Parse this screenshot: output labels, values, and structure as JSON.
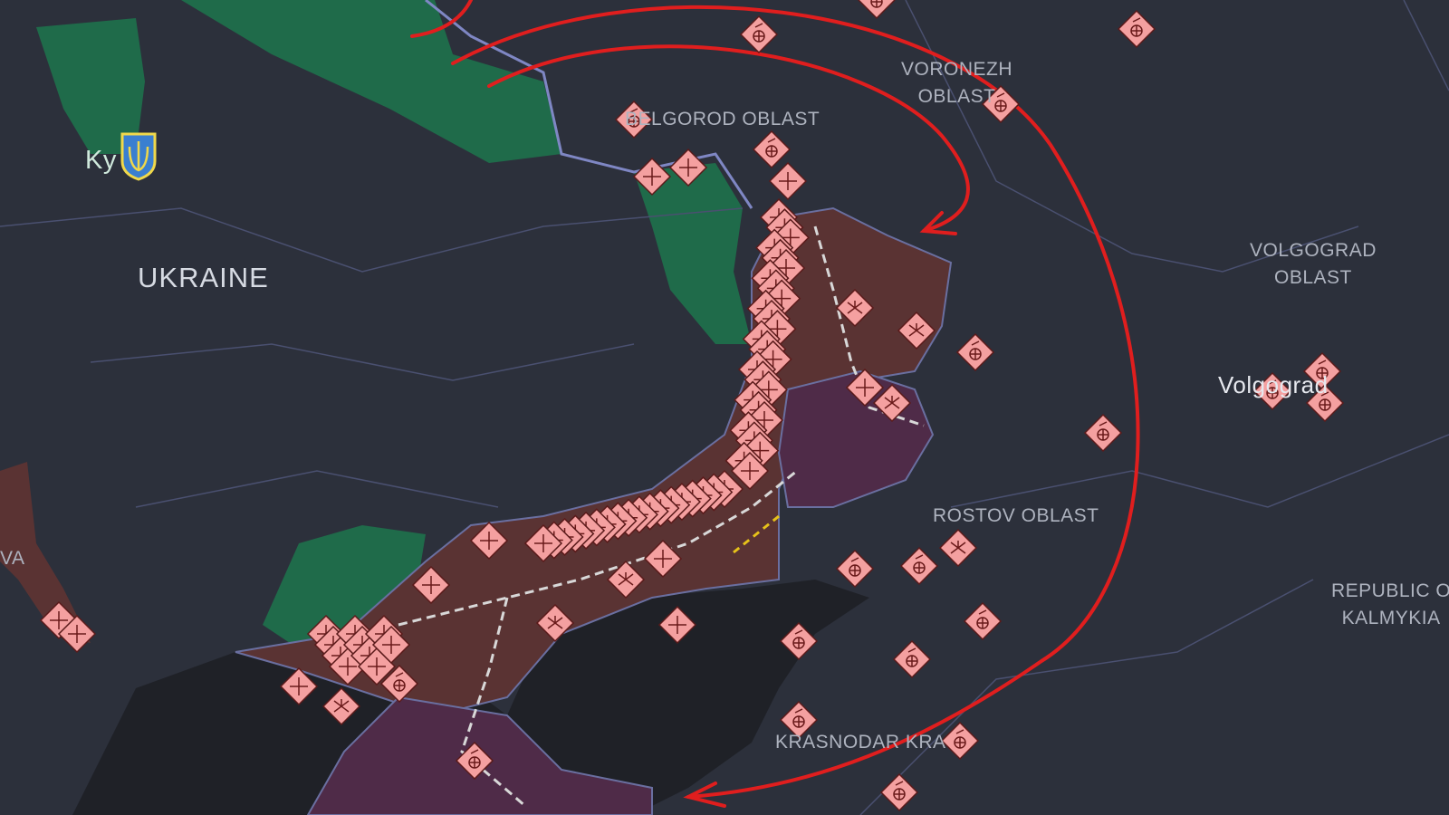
{
  "labels": {
    "country": "UKRAINE",
    "kyiv": "Ky",
    "belgorod": "BELGOROD OBLAST",
    "voronezh_1": "VORONEZH",
    "voronezh_2": "OBLAST",
    "volgograd_oblast_1": "VOLGOGRAD",
    "volgograd_oblast_2": "OBLAST",
    "volgograd_city": "Volgograd",
    "rostov": "ROSTOV OBLAST",
    "kalmykia_1": "REPUBLIC O",
    "kalmykia_2": "KALMYKIA",
    "krasnodar": "KRASNODAR KRA",
    "left_edge": "VA"
  },
  "colors": {
    "background": "#2c303b",
    "ukraine_controlled_green": "#1f6b4a",
    "occupied_brown": "#5a3333",
    "occupied_purple": "#4f2b48",
    "sea": "#1f2127",
    "marker_fill": "#f4a0a0",
    "arrow_red": "#e01e1e"
  },
  "marker_types": [
    "airbase-icon",
    "unit-x-icon",
    "cluster-icon"
  ]
}
